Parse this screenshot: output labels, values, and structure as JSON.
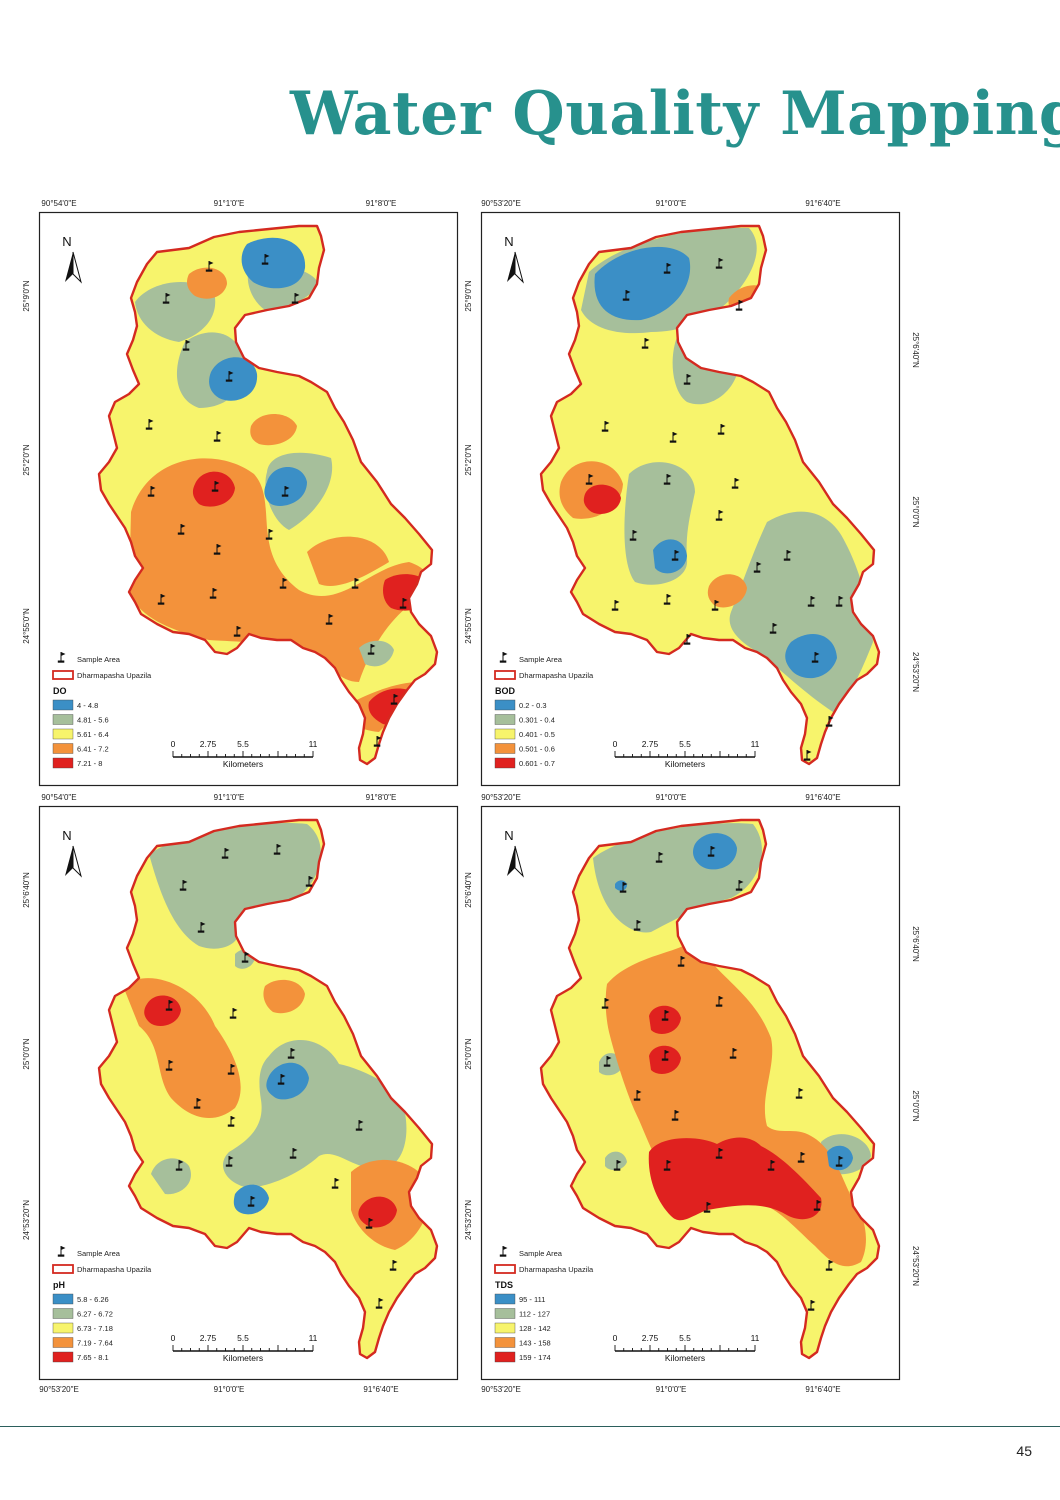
{
  "page": {
    "title": "Water Quality Mapping",
    "page_number": "45"
  },
  "common": {
    "north_label": "N",
    "legend_sample": "Sample Area",
    "legend_boundary": "Dharmapasha Upazila",
    "scale_ticks": [
      "0",
      "2.75",
      "5.5",
      "11"
    ],
    "scale_unit": "Kilometers"
  },
  "colors": {
    "class1": "#3b8fc6",
    "class2": "#a6bf9b",
    "class3": "#f7f46c",
    "class4": "#f3923b",
    "class5": "#e0211f",
    "boundary": "#d42a20"
  },
  "maps": [
    {
      "id": "do-map",
      "parameter": "DO",
      "classes": [
        "4 - 4.8",
        "4.81 - 5.6",
        "5.61 - 6.4",
        "6.41 - 7.2",
        "7.21 - 8"
      ],
      "top_labels": [
        "90°54'0\"E",
        "91°1'0\"E",
        "91°8'0\"E"
      ],
      "left_labels": [
        "25°9'0\"N",
        "25°2'0\"N",
        "24°55'0\"N"
      ],
      "right_labels": [],
      "bottom_labels": []
    },
    {
      "id": "bod-map",
      "parameter": "BOD",
      "classes": [
        "0.2 - 0.3",
        "0.301 - 0.4",
        "0.401 - 0.5",
        "0.501 - 0.6",
        "0.601 - 0.7"
      ],
      "top_labels": [
        "90°53'20\"E",
        "91°0'0\"E",
        "91°6'40\"E"
      ],
      "left_labels": [
        "25°9'0\"N",
        "25°2'0\"N",
        "24°55'0\"N"
      ],
      "right_labels": [
        "25°6'40\"N",
        "25°0'0\"N",
        "24°53'20\"N"
      ],
      "bottom_labels": []
    },
    {
      "id": "ph-map",
      "parameter": "pH",
      "classes": [
        "5.8 - 6.26",
        "6.27 - 6.72",
        "6.73 - 7.18",
        "7.19 - 7.64",
        "7.65 - 8.1"
      ],
      "top_labels": [
        "90°54'0\"E",
        "91°1'0\"E",
        "91°8'0\"E"
      ],
      "left_labels": [
        "25°6'40\"N",
        "25°0'0\"N",
        "24°53'20\"N"
      ],
      "right_labels": [],
      "bottom_labels": [
        "90°53'20\"E",
        "91°0'0\"E",
        "91°6'40\"E"
      ]
    },
    {
      "id": "tds-map",
      "parameter": "TDS",
      "classes": [
        "95 - 111",
        "112 - 127",
        "128 - 142",
        "143 - 158",
        "159 - 174"
      ],
      "top_labels": [
        "90°53'20\"E",
        "91°0'0\"E",
        "91°6'40\"E"
      ],
      "left_labels": [
        "25°6'40\"N",
        "25°0'0\"N",
        "24°53'20\"N"
      ],
      "right_labels": [
        "25°6'40\"N",
        "25°0'0\"N",
        "24°53'20\"N"
      ],
      "bottom_labels": [
        "90°53'20\"E",
        "91°0'0\"E",
        "91°6'40\"E"
      ]
    }
  ]
}
